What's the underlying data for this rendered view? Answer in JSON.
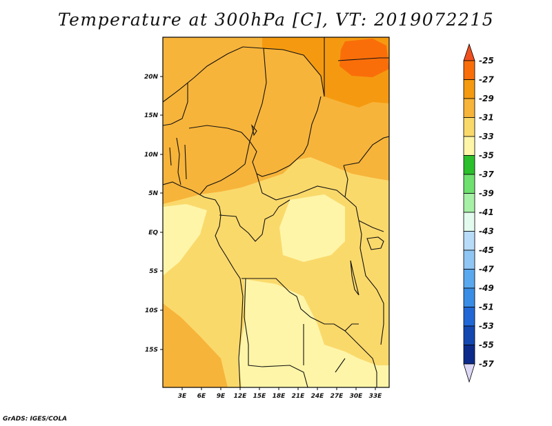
{
  "title": "Temperature at 300hPa [C], VT: 2019072215",
  "credit": "GrADS: IGES/COLA",
  "map": {
    "lon_labels": [
      "3E",
      "6E",
      "9E",
      "12E",
      "15E",
      "18E",
      "21E",
      "24E",
      "27E",
      "30E",
      "33E"
    ],
    "lat_labels": [
      "20N",
      "15N",
      "10N",
      "5N",
      "EQ",
      "5S",
      "10S",
      "15S"
    ]
  },
  "colorbar": {
    "levels": [
      "-25",
      "-27",
      "-29",
      "-31",
      "-33",
      "-35",
      "-37",
      "-39",
      "-41",
      "-43",
      "-45",
      "-47",
      "-49",
      "-51",
      "-53",
      "-55",
      "-57"
    ],
    "colors": {
      "above_-25": "#f0501e",
      "-27_to_-25": "#fa6e0a",
      "-29_to_-27": "#f59a10",
      "-31_to_-29": "#f7b43a",
      "-33_to_-31": "#fad96b",
      "-35_to_-33": "#fef5a8",
      "-37_to_-35": "#2bbf2b",
      "-39_to_-37": "#6ee06e",
      "-41_to_-39": "#a7f0a7",
      "-43_to_-41": "#e2fbee",
      "-45_to_-43": "#b8dcf8",
      "-47_to_-45": "#90c6f4",
      "-49_to_-47": "#5aa9ee",
      "-51_to_-49": "#3a8de5",
      "-53_to_-51": "#2168d6",
      "-55_to_-53": "#1448b0",
      "-57_to_-55": "#0c2a8a",
      "below_-57": "#1a0a6e"
    }
  }
}
